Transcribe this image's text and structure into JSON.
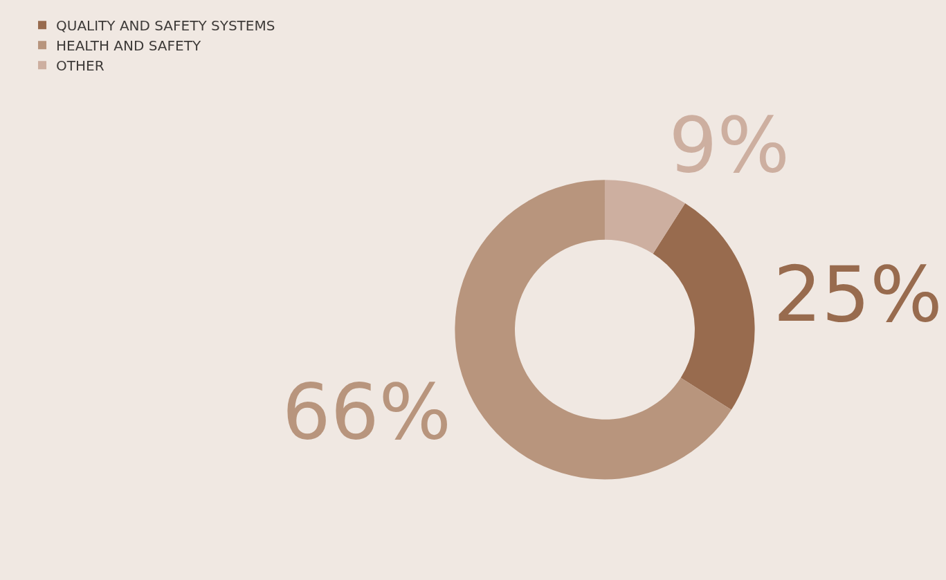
{
  "chart_data": {
    "type": "donut",
    "categories": [
      "QUALITY AND SAFETY SYSTEMS",
      "HEALTH AND SAFETY",
      "OTHER"
    ],
    "values": [
      25,
      66,
      9
    ],
    "value_labels": [
      "25%",
      "66%",
      "9%"
    ],
    "colors": [
      "#986b4e",
      "#b8957d",
      "#cdafa0"
    ],
    "legend": "top left"
  }
}
